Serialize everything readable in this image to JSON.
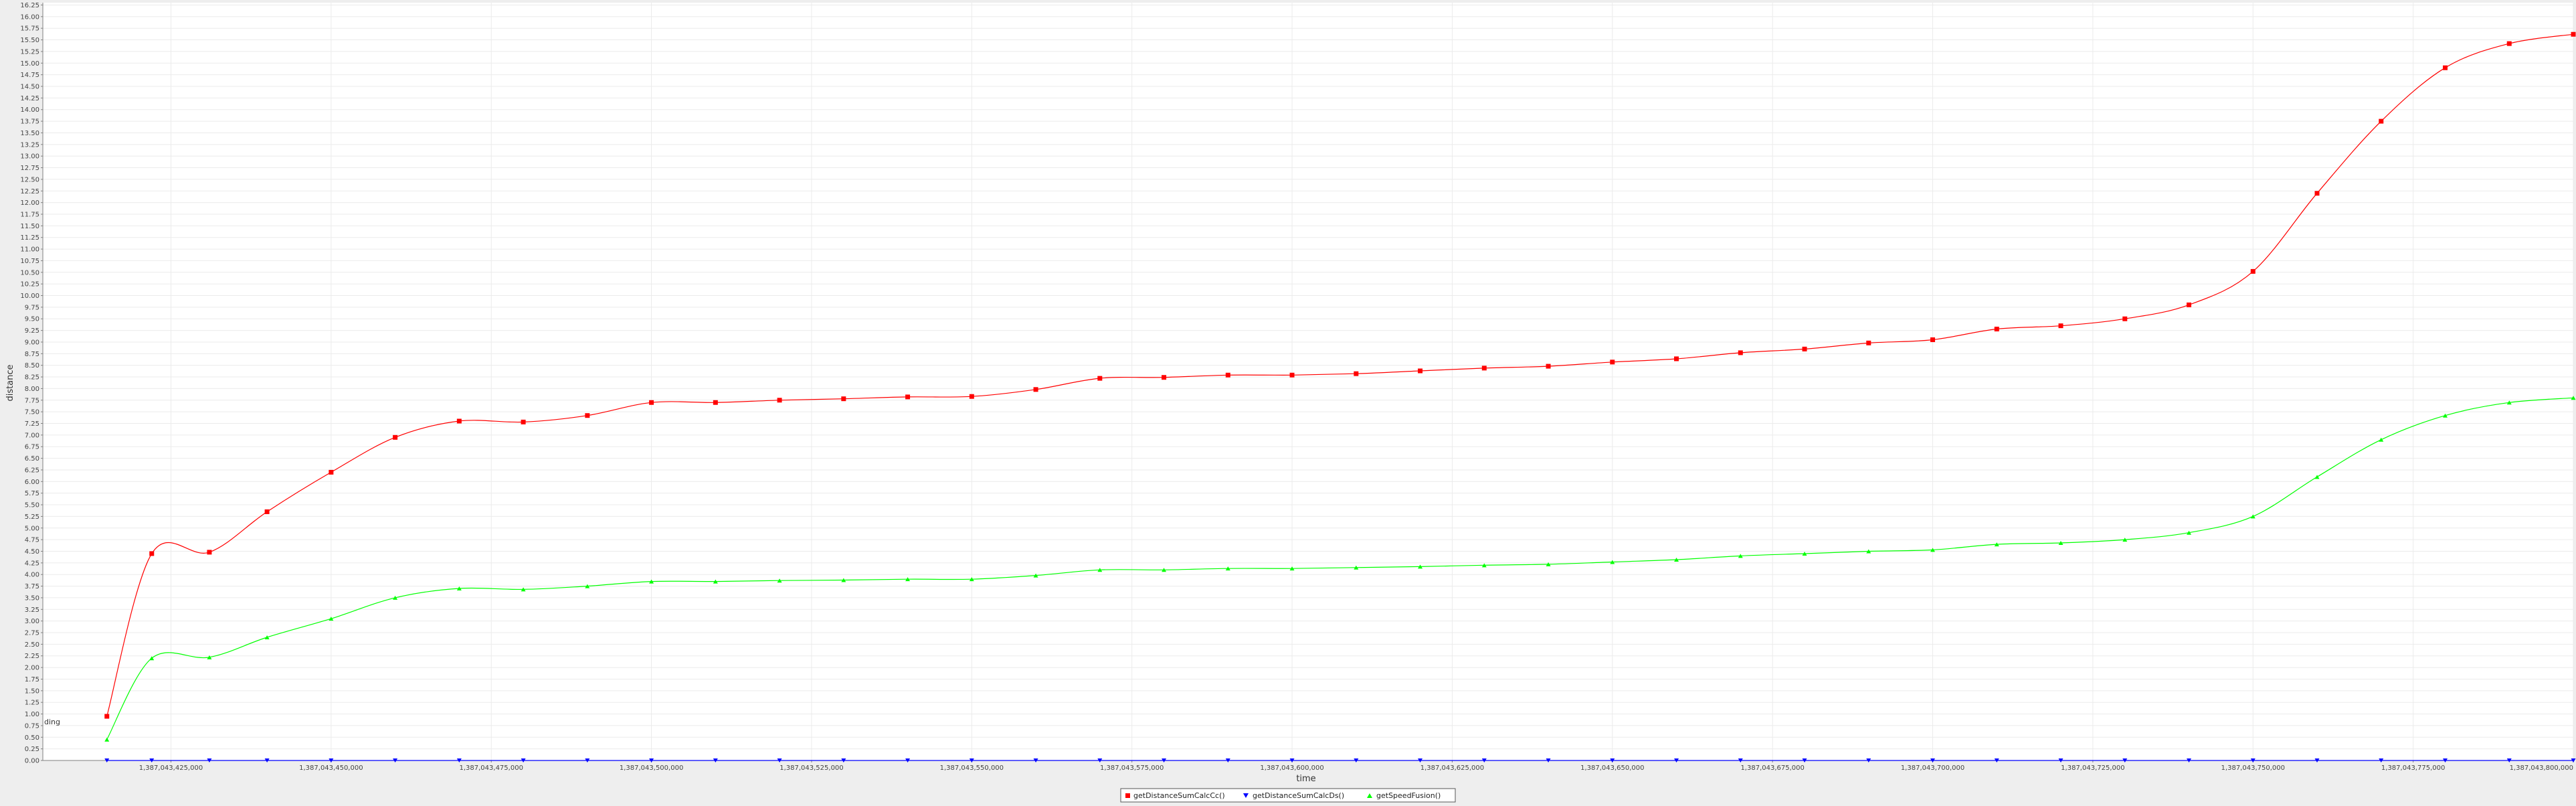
{
  "chart_data": {
    "type": "line",
    "xlabel": "time",
    "ylabel": "distance",
    "annotation": "ding",
    "xlim": [
      1387043405000,
      1387043800000
    ],
    "ylim": [
      0,
      16.3
    ],
    "y_ticks": [
      0,
      0.25,
      0.5,
      0.75,
      1,
      1.25,
      1.5,
      1.75,
      2,
      2.25,
      2.5,
      2.75,
      3,
      3.25,
      3.5,
      3.75,
      4,
      4.25,
      4.5,
      4.75,
      5,
      5.25,
      5.5,
      5.75,
      6,
      6.25,
      6.5,
      6.75,
      7,
      7.25,
      7.5,
      7.75,
      8,
      8.25,
      8.5,
      8.75,
      9,
      9.25,
      9.5,
      9.75,
      10,
      10.25,
      10.5,
      10.75,
      11,
      11.25,
      11.5,
      11.75,
      12,
      12.25,
      12.5,
      12.75,
      13,
      13.25,
      13.5,
      13.75,
      14,
      14.25,
      14.5,
      14.75,
      15,
      15.25,
      15.5,
      15.75,
      16,
      16.25
    ],
    "y_tick_labels": [
      "0.00",
      "0.25",
      "0.50",
      "0.75",
      "1.00",
      "1.25",
      "1.50",
      "1.75",
      "2.00",
      "2.25",
      "2.50",
      "2.75",
      "3.00",
      "3.25",
      "3.50",
      "3.75",
      "4.00",
      "4.25",
      "4.50",
      "4.75",
      "5.00",
      "5.25",
      "5.50",
      "5.75",
      "6.00",
      "6.25",
      "6.50",
      "6.75",
      "7.00",
      "7.25",
      "7.50",
      "7.75",
      "8.00",
      "8.25",
      "8.50",
      "8.75",
      "9.00",
      "9.25",
      "9.50",
      "9.75",
      "10.00",
      "10.25",
      "10.50",
      "10.75",
      "11.00",
      "11.25",
      "11.50",
      "11.75",
      "12.00",
      "12.25",
      "12.50",
      "12.75",
      "13.00",
      "13.25",
      "13.50",
      "13.75",
      "14.00",
      "14.25",
      "14.50",
      "14.75",
      "15.00",
      "15.25",
      "15.50",
      "15.75",
      "16.00",
      "16.25"
    ],
    "x_ticks": [
      1387043425000,
      1387043450000,
      1387043475000,
      1387043500000,
      1387043525000,
      1387043550000,
      1387043575000,
      1387043600000,
      1387043625000,
      1387043650000,
      1387043675000,
      1387043700000,
      1387043725000,
      1387043750000,
      1387043775000,
      1387043800000
    ],
    "x_tick_labels": [
      "1,387,043,425,000",
      "1,387,043,450,000",
      "1,387,043,475,000",
      "1,387,043,500,000",
      "1,387,043,525,000",
      "1,387,043,550,000",
      "1,387,043,575,000",
      "1,387,043,600,000",
      "1,387,043,625,000",
      "1,387,043,650,000",
      "1,387,043,675,000",
      "1,387,043,700,000",
      "1,387,043,725,000",
      "1,387,043,750,000",
      "1,387,043,775,000",
      "1,387,043,800,000"
    ],
    "x": [
      1387043415000,
      1387043422000,
      1387043431000,
      1387043440000,
      1387043450000,
      1387043460000,
      1387043470000,
      1387043480000,
      1387043490000,
      1387043500000,
      1387043510000,
      1387043520000,
      1387043530000,
      1387043540000,
      1387043550000,
      1387043560000,
      1387043570000,
      1387043580000,
      1387043590000,
      1387043600000,
      1387043610000,
      1387043620000,
      1387043630000,
      1387043640000,
      1387043650000,
      1387043660000,
      1387043670000,
      1387043680000,
      1387043690000,
      1387043700000,
      1387043710000,
      1387043720000,
      1387043730000,
      1387043740000,
      1387043750000,
      1387043760000,
      1387043770000,
      1387043780000,
      1387043790000,
      1387043800000
    ],
    "legend_position": "bottom-center",
    "grid": true,
    "series": [
      {
        "name": "getDistanceSumCalcCc()",
        "color": "#ff0000",
        "marker": "square",
        "values": [
          0.95,
          4.45,
          4.48,
          5.35,
          6.2,
          6.95,
          7.3,
          7.28,
          7.42,
          7.7,
          7.7,
          7.75,
          7.78,
          7.82,
          7.83,
          7.98,
          8.22,
          8.24,
          8.29,
          8.29,
          8.32,
          8.38,
          8.44,
          8.48,
          8.57,
          8.64,
          8.77,
          8.85,
          8.98,
          9.05,
          9.28,
          9.35,
          9.5,
          9.8,
          10.52,
          12.2,
          13.75,
          14.9,
          15.42,
          15.62
        ]
      },
      {
        "name": "getDistanceSumCalcDs()",
        "color": "#0000ff",
        "marker": "triangle-down",
        "values": [
          0,
          0,
          0,
          0,
          0,
          0,
          0,
          0,
          0,
          0,
          0,
          0,
          0,
          0,
          0,
          0,
          0,
          0,
          0,
          0,
          0,
          0,
          0,
          0,
          0,
          0,
          0,
          0,
          0,
          0,
          0,
          0,
          0,
          0,
          0,
          0,
          0,
          0,
          0,
          0
        ]
      },
      {
        "name": "getSpeedFusion()",
        "color": "#00ff00",
        "marker": "triangle-up",
        "values": [
          0.45,
          2.2,
          2.22,
          2.65,
          3.05,
          3.5,
          3.7,
          3.68,
          3.75,
          3.85,
          3.85,
          3.87,
          3.88,
          3.9,
          3.9,
          3.98,
          4.1,
          4.1,
          4.13,
          4.13,
          4.15,
          4.17,
          4.2,
          4.22,
          4.27,
          4.32,
          4.4,
          4.45,
          4.5,
          4.53,
          4.65,
          4.68,
          4.75,
          4.9,
          5.25,
          6.1,
          6.9,
          7.42,
          7.7,
          7.8
        ]
      }
    ]
  }
}
